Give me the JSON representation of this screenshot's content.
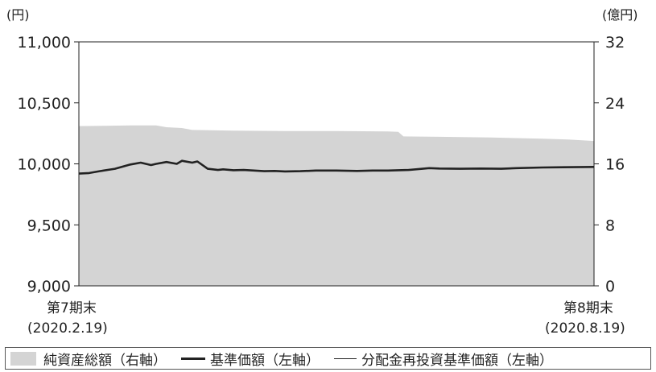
{
  "left_axis_unit": "(円)",
  "right_axis_unit": "(億円)",
  "legend": {
    "area": "純資産総額（右軸）",
    "nav": "基準価額（左軸）",
    "reinvested": "分配金再投資基準価額（左軸）"
  },
  "x_start": {
    "period": "第7期末",
    "date": "(2020.2.19)"
  },
  "x_end": {
    "period": "第8期末",
    "date": "(2020.8.19)"
  },
  "colors": {
    "area": "#d4d4d4",
    "line": "#222222"
  },
  "chart_data": {
    "type": "line",
    "x_labels": [
      "第7期末\n(2020.2.19)",
      "第8期末\n(2020.8.19)"
    ],
    "left_axis": {
      "range": [
        9000,
        11000
      ],
      "ticks": [
        9000,
        9500,
        10000,
        10500,
        11000
      ],
      "tick_labels": [
        "9,000",
        "9,500",
        "10,000",
        "10,500",
        "11,000"
      ],
      "unit": "(円)"
    },
    "right_axis": {
      "range": [
        0,
        32
      ],
      "ticks": [
        0,
        8,
        16,
        24,
        32
      ],
      "tick_labels": [
        "0",
        "8",
        "16",
        "24",
        "32"
      ],
      "unit": "(億円)"
    },
    "series": [
      {
        "name": "純資産総額（右軸）",
        "type": "area",
        "axis": "right",
        "x": [
          0,
          0.05,
          0.1,
          0.15,
          0.17,
          0.2,
          0.22,
          0.3,
          0.4,
          0.5,
          0.6,
          0.62,
          0.63,
          0.7,
          0.8,
          0.9,
          0.95,
          1.0
        ],
        "values": [
          20.95,
          21.0,
          21.05,
          21.05,
          20.8,
          20.7,
          20.45,
          20.35,
          20.3,
          20.3,
          20.25,
          20.2,
          19.6,
          19.55,
          19.45,
          19.3,
          19.2,
          19.0
        ]
      },
      {
        "name": "基準価額（左軸）",
        "type": "line",
        "axis": "left",
        "x": [
          0,
          0.02,
          0.04,
          0.07,
          0.1,
          0.12,
          0.14,
          0.15,
          0.17,
          0.19,
          0.2,
          0.22,
          0.23,
          0.25,
          0.27,
          0.28,
          0.3,
          0.32,
          0.34,
          0.36,
          0.38,
          0.4,
          0.43,
          0.46,
          0.5,
          0.54,
          0.57,
          0.6,
          0.64,
          0.68,
          0.7,
          0.74,
          0.78,
          0.82,
          0.85,
          0.9,
          0.94,
          1.0
        ],
        "values": [
          9920,
          9925,
          9940,
          9960,
          9995,
          10010,
          9990,
          10000,
          10015,
          10000,
          10025,
          10010,
          10020,
          9960,
          9950,
          9955,
          9948,
          9950,
          9945,
          9940,
          9942,
          9938,
          9940,
          9945,
          9945,
          9942,
          9945,
          9945,
          9950,
          9965,
          9962,
          9960,
          9962,
          9960,
          9965,
          9970,
          9972,
          9975
        ]
      }
    ]
  }
}
